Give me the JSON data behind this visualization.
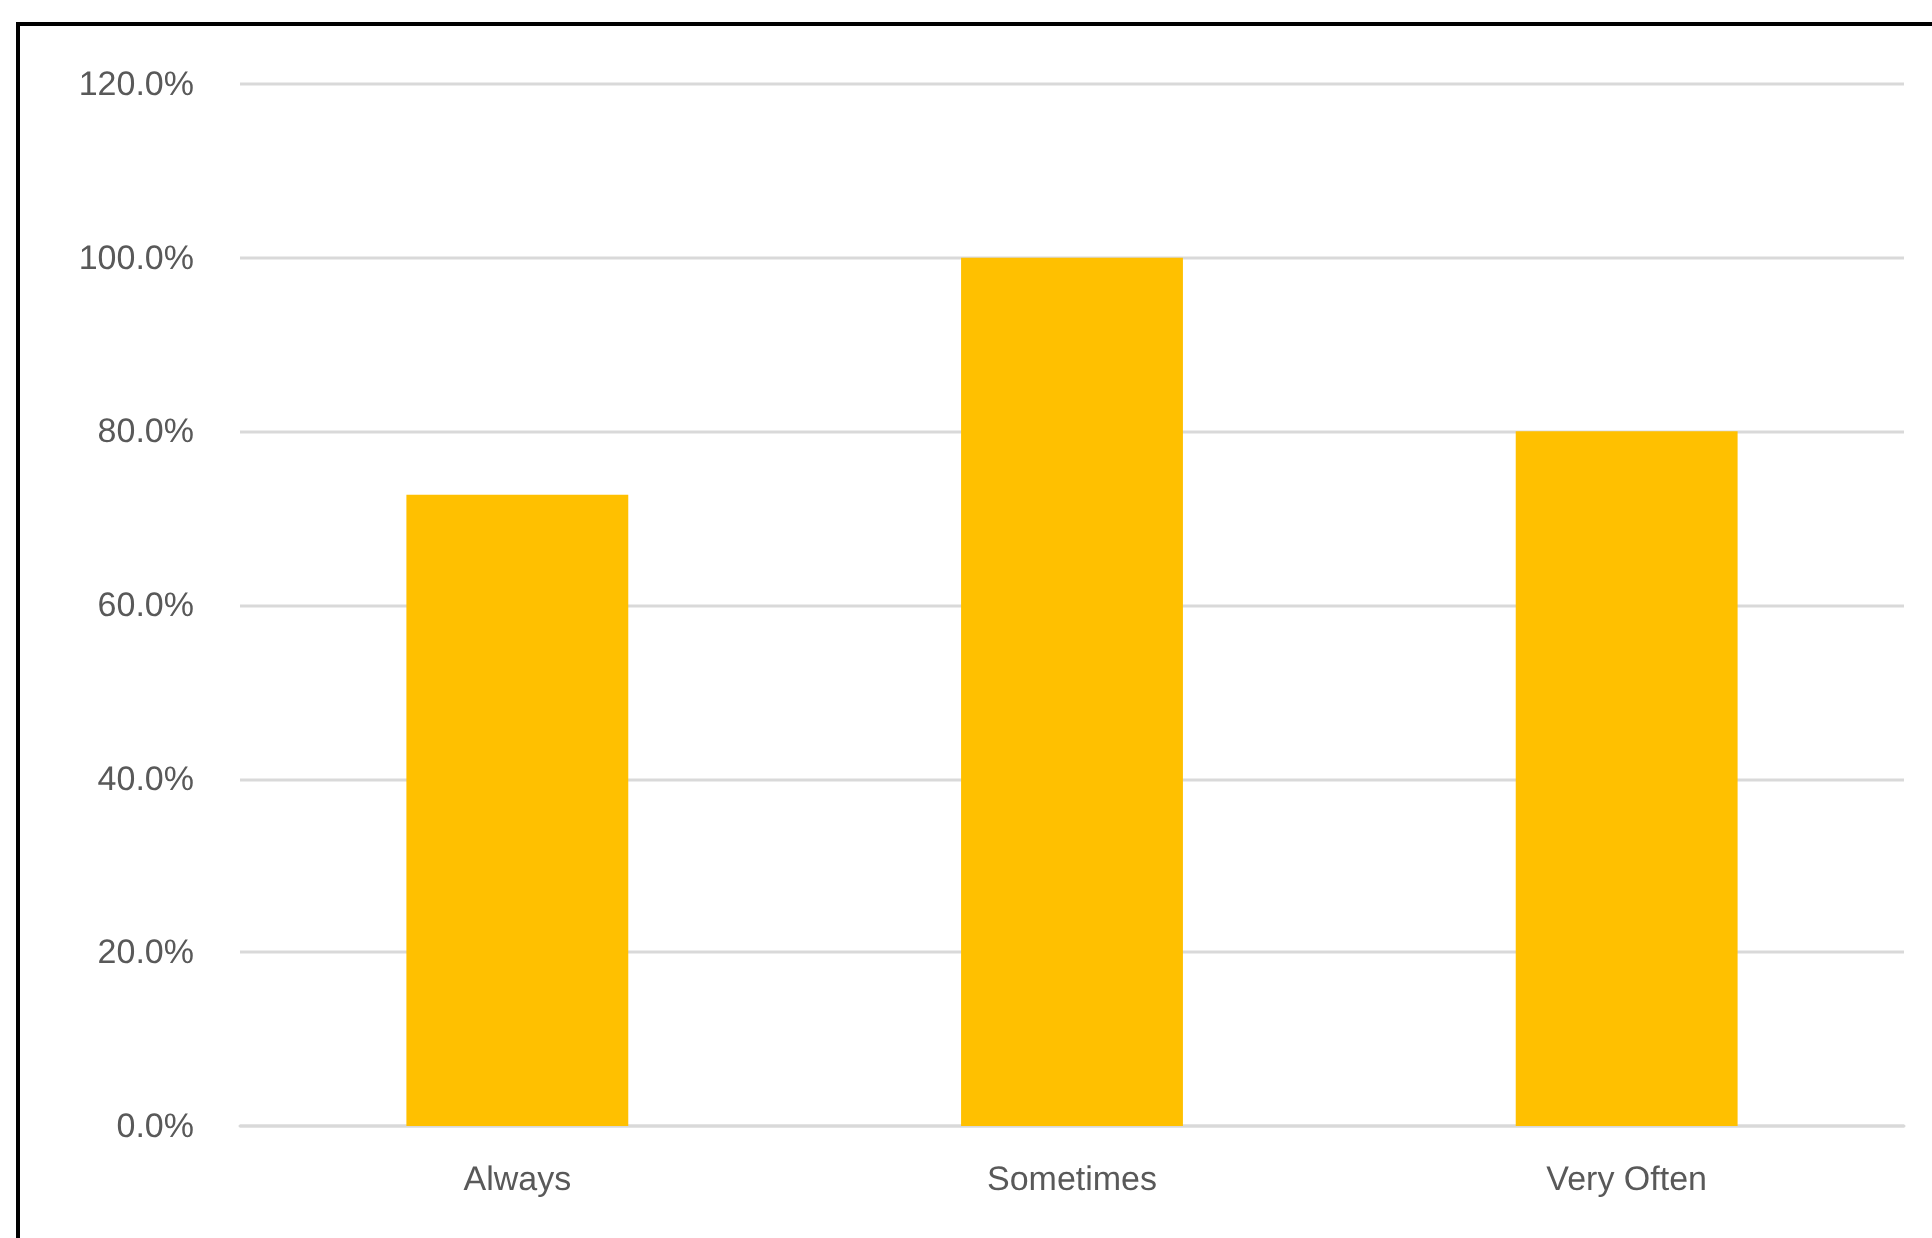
{
  "chart_data": {
    "type": "bar",
    "categories": [
      "Always",
      "Sometimes",
      "Very Often"
    ],
    "values": [
      72.7,
      100,
      80
    ],
    "color": "#ffc000",
    "ylim": [
      0,
      120
    ],
    "yticks": [
      {
        "value": 0,
        "label": "0.0%"
      },
      {
        "value": 20,
        "label": "20.0%"
      },
      {
        "value": 40,
        "label": "40.0%"
      },
      {
        "value": 60,
        "label": "60.0%"
      },
      {
        "value": 80,
        "label": "80.0%"
      },
      {
        "value": 100,
        "label": "100.0%"
      },
      {
        "value": 120,
        "label": "120.0%"
      }
    ],
    "grid": "y"
  }
}
